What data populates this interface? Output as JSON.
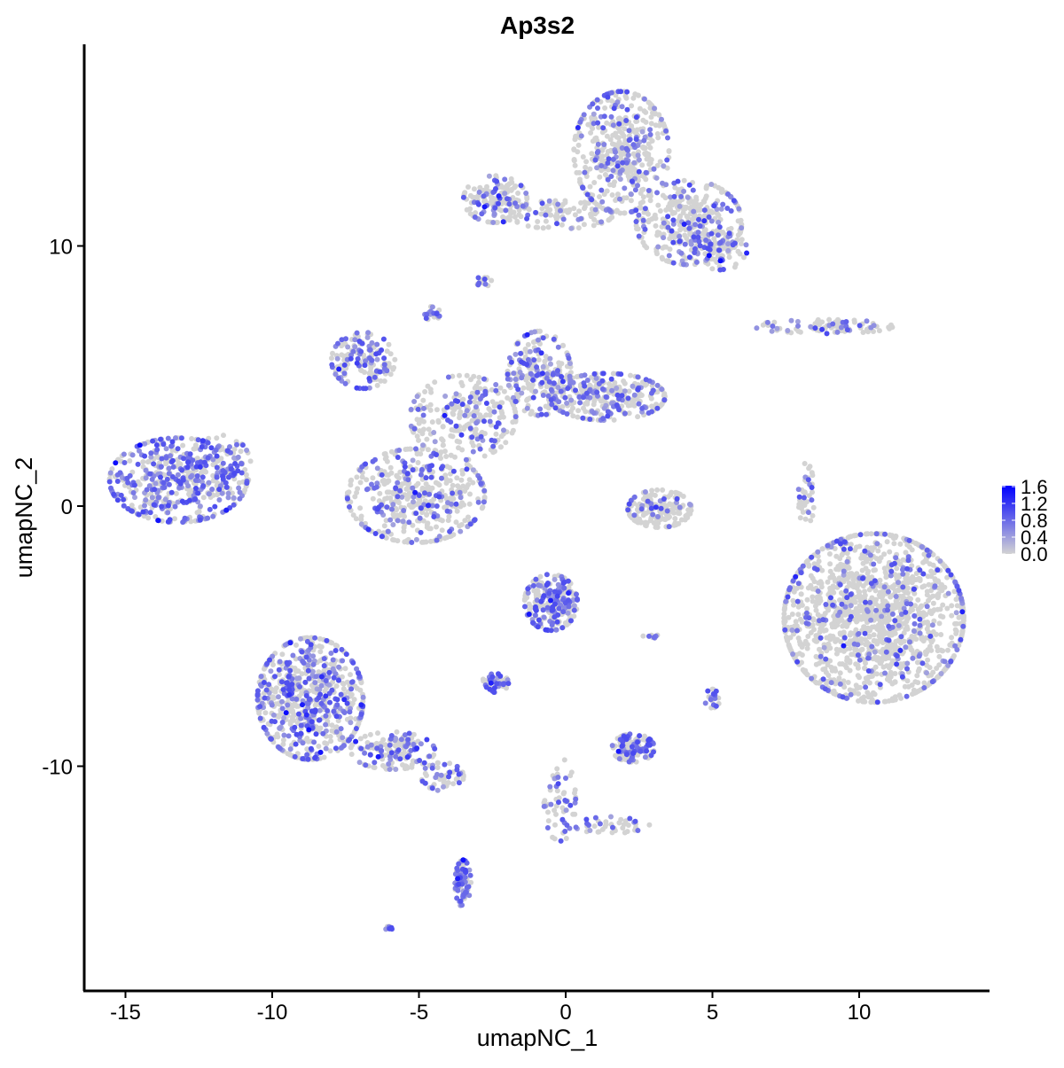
{
  "chart_data": {
    "type": "scatter",
    "title": "Ap3s2",
    "xlabel": "umapNC_1",
    "ylabel": "umapNC_2",
    "xlim": [
      -16.4,
      14.4
    ],
    "ylim": [
      -18.6,
      17.75
    ],
    "x_ticks": [
      -15,
      -10,
      -5,
      0,
      5,
      10
    ],
    "x_tick_labels": [
      "-15",
      "-10",
      "-5",
      "0",
      "5",
      "10"
    ],
    "y_ticks": [
      -10,
      0,
      10
    ],
    "y_tick_labels": [
      "-10",
      "0",
      "10"
    ],
    "grid": false,
    "legend": {
      "position": "right",
      "type": "colorbar",
      "range": [
        0,
        1.6
      ],
      "ticks": [
        "1.6",
        "1.2",
        "0.8",
        "0.4",
        "0.0"
      ],
      "tick_values": [
        1.6,
        1.2,
        0.8,
        0.4,
        0.0
      ]
    },
    "colors": {
      "low": "#d3d3d3",
      "high": "#0000ff"
    },
    "clusters": [
      {
        "x": -13.2,
        "y": 1.0,
        "sx": 1.3,
        "sy": 0.9,
        "n": 500,
        "expr_frac": 0.55
      },
      {
        "x": -11.8,
        "y": 1.5,
        "sx": 0.6,
        "sy": 0.7,
        "n": 60,
        "expr_frac": 0.4
      },
      {
        "x": 1.9,
        "y": 13.6,
        "sx": 0.9,
        "sy": 1.3,
        "n": 450,
        "expr_frac": 0.25
      },
      {
        "x": 4.2,
        "y": 10.9,
        "sx": 1.0,
        "sy": 0.9,
        "n": 350,
        "expr_frac": 0.25
      },
      {
        "x": 5.3,
        "y": 9.8,
        "sx": 0.5,
        "sy": 0.4,
        "n": 80,
        "expr_frac": 0.35
      },
      {
        "x": -2.4,
        "y": 11.8,
        "sx": 0.6,
        "sy": 0.5,
        "n": 150,
        "expr_frac": 0.3
      },
      {
        "x": -0.2,
        "y": 11.2,
        "sx": 1.0,
        "sy": 0.3,
        "n": 100,
        "expr_frac": 0.2
      },
      {
        "x": -6.9,
        "y": 5.6,
        "sx": 0.6,
        "sy": 0.6,
        "n": 150,
        "expr_frac": 0.45
      },
      {
        "x": -5.1,
        "y": 0.4,
        "sx": 1.3,
        "sy": 1.0,
        "n": 450,
        "expr_frac": 0.3
      },
      {
        "x": -3.5,
        "y": 3.4,
        "sx": 1.0,
        "sy": 0.9,
        "n": 250,
        "expr_frac": 0.25
      },
      {
        "x": -0.9,
        "y": 5.1,
        "sx": 0.6,
        "sy": 0.9,
        "n": 220,
        "expr_frac": 0.35
      },
      {
        "x": 1.4,
        "y": 4.2,
        "sx": 1.1,
        "sy": 0.5,
        "n": 300,
        "expr_frac": 0.3
      },
      {
        "x": 10.5,
        "y": -4.3,
        "sx": 1.7,
        "sy": 1.8,
        "n": 1500,
        "expr_frac": 0.15
      },
      {
        "x": -8.7,
        "y": -7.4,
        "sx": 1.0,
        "sy": 1.3,
        "n": 700,
        "expr_frac": 0.4
      },
      {
        "x": -5.9,
        "y": -9.4,
        "sx": 0.8,
        "sy": 0.4,
        "n": 150,
        "expr_frac": 0.35
      },
      {
        "x": -4.2,
        "y": -10.4,
        "sx": 0.4,
        "sy": 0.3,
        "n": 50,
        "expr_frac": 0.4
      },
      {
        "x": -3.5,
        "y": -14.5,
        "sx": 0.15,
        "sy": 0.5,
        "n": 80,
        "expr_frac": 0.6
      },
      {
        "x": -0.5,
        "y": -3.7,
        "sx": 0.5,
        "sy": 0.6,
        "n": 250,
        "expr_frac": 0.45
      },
      {
        "x": 3.2,
        "y": -0.1,
        "sx": 0.6,
        "sy": 0.4,
        "n": 180,
        "expr_frac": 0.2
      },
      {
        "x": 2.3,
        "y": -9.3,
        "sx": 0.4,
        "sy": 0.3,
        "n": 120,
        "expr_frac": 0.5
      },
      {
        "x": -2.4,
        "y": -6.8,
        "sx": 0.25,
        "sy": 0.2,
        "n": 50,
        "expr_frac": 0.5
      },
      {
        "x": 8.8,
        "y": 6.9,
        "sx": 1.3,
        "sy": 0.15,
        "n": 90,
        "expr_frac": 0.35
      },
      {
        "x": 8.2,
        "y": 0.4,
        "sx": 0.15,
        "sy": 0.7,
        "n": 40,
        "expr_frac": 0.3
      },
      {
        "x": -0.2,
        "y": -11.3,
        "sx": 0.3,
        "sy": 0.9,
        "n": 60,
        "expr_frac": 0.3
      },
      {
        "x": 1.6,
        "y": -12.3,
        "sx": 0.7,
        "sy": 0.2,
        "n": 40,
        "expr_frac": 0.3
      },
      {
        "x": -2.8,
        "y": 8.7,
        "sx": 0.15,
        "sy": 0.15,
        "n": 15,
        "expr_frac": 0.4
      },
      {
        "x": -4.55,
        "y": 7.4,
        "sx": 0.15,
        "sy": 0.15,
        "n": 20,
        "expr_frac": 0.5
      },
      {
        "x": 5.0,
        "y": -7.4,
        "sx": 0.15,
        "sy": 0.2,
        "n": 20,
        "expr_frac": 0.5
      },
      {
        "x": -6.0,
        "y": -16.2,
        "sx": 0.1,
        "sy": 0.05,
        "n": 8,
        "expr_frac": 0.5
      },
      {
        "x": 3.0,
        "y": -5.0,
        "sx": 0.2,
        "sy": 0.05,
        "n": 10,
        "expr_frac": 0.4
      }
    ]
  }
}
